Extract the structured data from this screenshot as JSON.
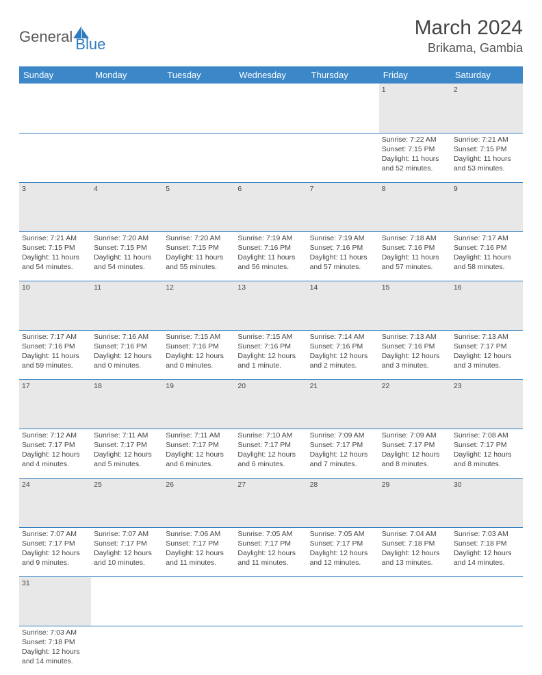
{
  "logo": {
    "general": "General",
    "blue": "Blue"
  },
  "title": "March 2024",
  "location": "Brikama, Gambia",
  "colors": {
    "header_bg": "#3b87c8",
    "row_divider": "#2d7cc0",
    "daynum_bg": "#e8e8e8",
    "text": "#444444"
  },
  "weekdays": [
    "Sunday",
    "Monday",
    "Tuesday",
    "Wednesday",
    "Thursday",
    "Friday",
    "Saturday"
  ],
  "weeks": [
    [
      null,
      null,
      null,
      null,
      null,
      {
        "n": "1",
        "sr": "Sunrise: 7:22 AM",
        "ss": "Sunset: 7:15 PM",
        "d1": "Daylight: 11 hours",
        "d2": "and 52 minutes."
      },
      {
        "n": "2",
        "sr": "Sunrise: 7:21 AM",
        "ss": "Sunset: 7:15 PM",
        "d1": "Daylight: 11 hours",
        "d2": "and 53 minutes."
      }
    ],
    [
      {
        "n": "3",
        "sr": "Sunrise: 7:21 AM",
        "ss": "Sunset: 7:15 PM",
        "d1": "Daylight: 11 hours",
        "d2": "and 54 minutes."
      },
      {
        "n": "4",
        "sr": "Sunrise: 7:20 AM",
        "ss": "Sunset: 7:15 PM",
        "d1": "Daylight: 11 hours",
        "d2": "and 54 minutes."
      },
      {
        "n": "5",
        "sr": "Sunrise: 7:20 AM",
        "ss": "Sunset: 7:15 PM",
        "d1": "Daylight: 11 hours",
        "d2": "and 55 minutes."
      },
      {
        "n": "6",
        "sr": "Sunrise: 7:19 AM",
        "ss": "Sunset: 7:16 PM",
        "d1": "Daylight: 11 hours",
        "d2": "and 56 minutes."
      },
      {
        "n": "7",
        "sr": "Sunrise: 7:19 AM",
        "ss": "Sunset: 7:16 PM",
        "d1": "Daylight: 11 hours",
        "d2": "and 57 minutes."
      },
      {
        "n": "8",
        "sr": "Sunrise: 7:18 AM",
        "ss": "Sunset: 7:16 PM",
        "d1": "Daylight: 11 hours",
        "d2": "and 57 minutes."
      },
      {
        "n": "9",
        "sr": "Sunrise: 7:17 AM",
        "ss": "Sunset: 7:16 PM",
        "d1": "Daylight: 11 hours",
        "d2": "and 58 minutes."
      }
    ],
    [
      {
        "n": "10",
        "sr": "Sunrise: 7:17 AM",
        "ss": "Sunset: 7:16 PM",
        "d1": "Daylight: 11 hours",
        "d2": "and 59 minutes."
      },
      {
        "n": "11",
        "sr": "Sunrise: 7:16 AM",
        "ss": "Sunset: 7:16 PM",
        "d1": "Daylight: 12 hours",
        "d2": "and 0 minutes."
      },
      {
        "n": "12",
        "sr": "Sunrise: 7:15 AM",
        "ss": "Sunset: 7:16 PM",
        "d1": "Daylight: 12 hours",
        "d2": "and 0 minutes."
      },
      {
        "n": "13",
        "sr": "Sunrise: 7:15 AM",
        "ss": "Sunset: 7:16 PM",
        "d1": "Daylight: 12 hours",
        "d2": "and 1 minute."
      },
      {
        "n": "14",
        "sr": "Sunrise: 7:14 AM",
        "ss": "Sunset: 7:16 PM",
        "d1": "Daylight: 12 hours",
        "d2": "and 2 minutes."
      },
      {
        "n": "15",
        "sr": "Sunrise: 7:13 AM",
        "ss": "Sunset: 7:16 PM",
        "d1": "Daylight: 12 hours",
        "d2": "and 3 minutes."
      },
      {
        "n": "16",
        "sr": "Sunrise: 7:13 AM",
        "ss": "Sunset: 7:17 PM",
        "d1": "Daylight: 12 hours",
        "d2": "and 3 minutes."
      }
    ],
    [
      {
        "n": "17",
        "sr": "Sunrise: 7:12 AM",
        "ss": "Sunset: 7:17 PM",
        "d1": "Daylight: 12 hours",
        "d2": "and 4 minutes."
      },
      {
        "n": "18",
        "sr": "Sunrise: 7:11 AM",
        "ss": "Sunset: 7:17 PM",
        "d1": "Daylight: 12 hours",
        "d2": "and 5 minutes."
      },
      {
        "n": "19",
        "sr": "Sunrise: 7:11 AM",
        "ss": "Sunset: 7:17 PM",
        "d1": "Daylight: 12 hours",
        "d2": "and 6 minutes."
      },
      {
        "n": "20",
        "sr": "Sunrise: 7:10 AM",
        "ss": "Sunset: 7:17 PM",
        "d1": "Daylight: 12 hours",
        "d2": "and 6 minutes."
      },
      {
        "n": "21",
        "sr": "Sunrise: 7:09 AM",
        "ss": "Sunset: 7:17 PM",
        "d1": "Daylight: 12 hours",
        "d2": "and 7 minutes."
      },
      {
        "n": "22",
        "sr": "Sunrise: 7:09 AM",
        "ss": "Sunset: 7:17 PM",
        "d1": "Daylight: 12 hours",
        "d2": "and 8 minutes."
      },
      {
        "n": "23",
        "sr": "Sunrise: 7:08 AM",
        "ss": "Sunset: 7:17 PM",
        "d1": "Daylight: 12 hours",
        "d2": "and 8 minutes."
      }
    ],
    [
      {
        "n": "24",
        "sr": "Sunrise: 7:07 AM",
        "ss": "Sunset: 7:17 PM",
        "d1": "Daylight: 12 hours",
        "d2": "and 9 minutes."
      },
      {
        "n": "25",
        "sr": "Sunrise: 7:07 AM",
        "ss": "Sunset: 7:17 PM",
        "d1": "Daylight: 12 hours",
        "d2": "and 10 minutes."
      },
      {
        "n": "26",
        "sr": "Sunrise: 7:06 AM",
        "ss": "Sunset: 7:17 PM",
        "d1": "Daylight: 12 hours",
        "d2": "and 11 minutes."
      },
      {
        "n": "27",
        "sr": "Sunrise: 7:05 AM",
        "ss": "Sunset: 7:17 PM",
        "d1": "Daylight: 12 hours",
        "d2": "and 11 minutes."
      },
      {
        "n": "28",
        "sr": "Sunrise: 7:05 AM",
        "ss": "Sunset: 7:17 PM",
        "d1": "Daylight: 12 hours",
        "d2": "and 12 minutes."
      },
      {
        "n": "29",
        "sr": "Sunrise: 7:04 AM",
        "ss": "Sunset: 7:18 PM",
        "d1": "Daylight: 12 hours",
        "d2": "and 13 minutes."
      },
      {
        "n": "30",
        "sr": "Sunrise: 7:03 AM",
        "ss": "Sunset: 7:18 PM",
        "d1": "Daylight: 12 hours",
        "d2": "and 14 minutes."
      }
    ],
    [
      {
        "n": "31",
        "sr": "Sunrise: 7:03 AM",
        "ss": "Sunset: 7:18 PM",
        "d1": "Daylight: 12 hours",
        "d2": "and 14 minutes."
      },
      null,
      null,
      null,
      null,
      null,
      null
    ]
  ]
}
